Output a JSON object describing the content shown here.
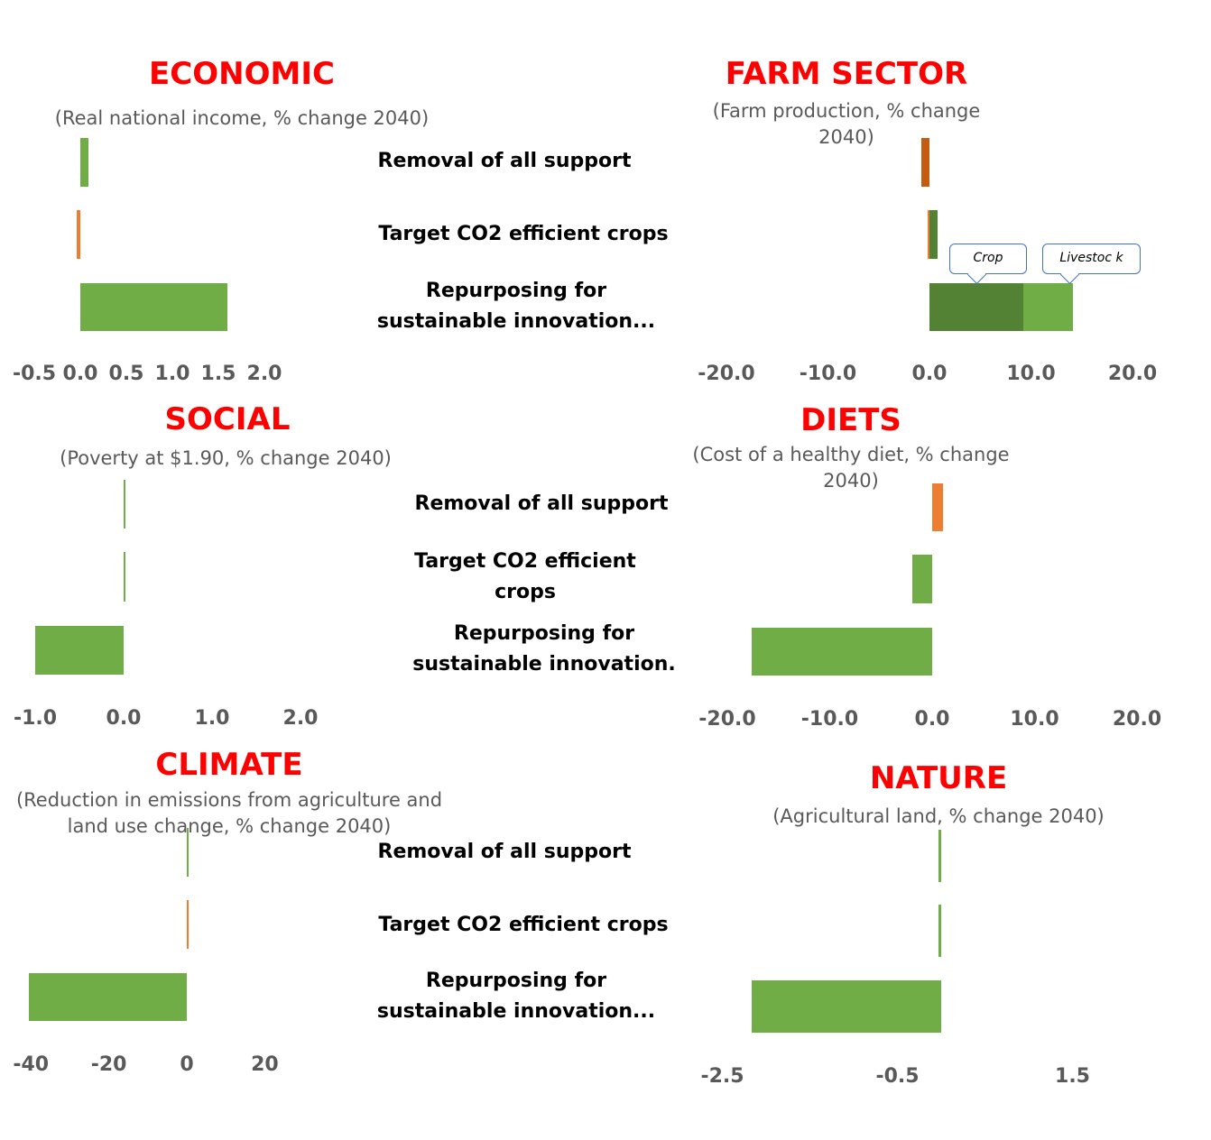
{
  "colors": {
    "green": "#70AD47",
    "orange": "#ED7D31",
    "dark_green": "#548235",
    "dark_orange": "#C55A11",
    "title": "#FF0000"
  },
  "chart_data": [
    {
      "type": "bar",
      "orientation": "horizontal",
      "title": "ECONOMIC",
      "subtitle": "(Real national income, % change 2040)",
      "categories": [
        "Removal of all support",
        "Target CO2 efficient crops",
        "Repurposing for sustainable innovation..."
      ],
      "values": [
        0.09,
        -0.04,
        1.6
      ],
      "xlim": [
        -0.5,
        2.0
      ],
      "ticks": [
        "-0.5",
        "0.0",
        "0.5",
        "1.0",
        "1.5",
        "2.0"
      ]
    },
    {
      "type": "bar",
      "orientation": "horizontal",
      "stacked": true,
      "title": "FARM SECTOR",
      "subtitle": "(Farm production, % change 2040)",
      "categories": [
        "Removal of all support",
        "Target CO2 efficient crops",
        "Repurposing for sustainable innovation..."
      ],
      "series": [
        {
          "name": "Crop",
          "values": [
            -0.8,
            0.8,
            9.2
          ]
        },
        {
          "name": "Livestock",
          "values": [
            0,
            -0.2,
            4.9
          ]
        }
      ],
      "annotations": [
        "Crop",
        "Livestoc k"
      ],
      "xlim": [
        -20,
        20
      ],
      "ticks": [
        "-20.0",
        "-10.0",
        "0.0",
        "10.0",
        "20.0"
      ]
    },
    {
      "type": "bar",
      "orientation": "horizontal",
      "title": "SOCIAL",
      "subtitle": "(Poverty at $1.90, % change 2040)",
      "categories": [
        "Removal of all support",
        "Target CO2 efficient crops",
        "Repurposing for sustainable innovation."
      ],
      "values": [
        0.01,
        0.01,
        -1.0
      ],
      "xlim": [
        -1.0,
        2.0
      ],
      "ticks": [
        "-1.0",
        "0.0",
        "1.0",
        "2.0"
      ]
    },
    {
      "type": "bar",
      "orientation": "horizontal",
      "title": "DIETS",
      "subtitle": "(Cost of a healthy diet, % change 2040)",
      "categories": [
        "Removal of all support",
        "Target CO2 efficient crops",
        "Repurposing for sustainable innovation."
      ],
      "values": [
        1.1,
        -1.9,
        -17.6
      ],
      "xlim": [
        -20,
        20
      ],
      "ticks": [
        "-20.0",
        "-10.0",
        "0.0",
        "10.0",
        "20.0"
      ]
    },
    {
      "type": "bar",
      "orientation": "horizontal",
      "title": "CLIMATE",
      "subtitle": "(Reduction in emissions from agriculture and land use change, % change 2040)",
      "categories": [
        "Removal of all support",
        "Target CO2 efficient crops",
        "Repurposing for sustainable innovation..."
      ],
      "values": [
        0.1,
        0.2,
        -40.5
      ],
      "xlim": [
        -40,
        20
      ],
      "ticks": [
        "-40",
        "-20",
        "0",
        "20"
      ]
    },
    {
      "type": "bar",
      "orientation": "horizontal",
      "title": "NATURE",
      "subtitle": "(Agricultural land, % change 2040)",
      "categories": [
        "",
        "",
        ""
      ],
      "values": [
        -0.03,
        -0.03,
        -2.17
      ],
      "xlim": [
        -2.5,
        1.5
      ],
      "ticks": [
        "-2.5",
        "-0.5",
        "1.5"
      ]
    }
  ]
}
